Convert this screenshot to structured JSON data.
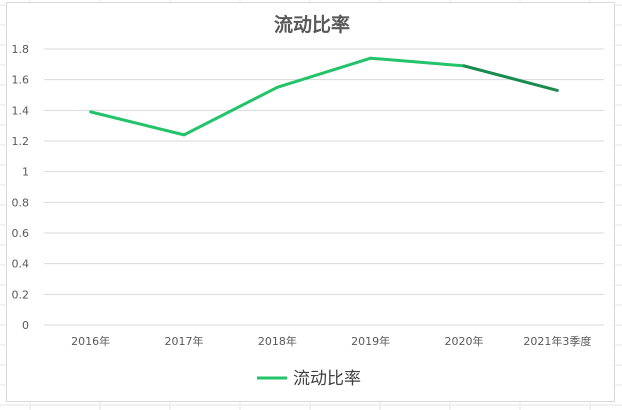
{
  "chart_data": {
    "type": "line",
    "title": "流动比率",
    "categories": [
      "2016年",
      "2017年",
      "2018年",
      "2019年",
      "2020年",
      "2021年3季度"
    ],
    "series": [
      {
        "name": "流动比率",
        "values": [
          1.39,
          1.24,
          1.55,
          1.74,
          1.69,
          1.53
        ]
      }
    ],
    "ylim": [
      0,
      1.8
    ],
    "yticks": [
      "0",
      "0.2",
      "0.4",
      "0.6",
      "0.8",
      "1",
      "1.2",
      "1.4",
      "1.6",
      "1.8"
    ],
    "grid": true,
    "legend_position": "bottom",
    "colors": {
      "line": "#22c36a",
      "line_dark": "#1a8a4e",
      "grid": "#d9d9d9"
    }
  }
}
